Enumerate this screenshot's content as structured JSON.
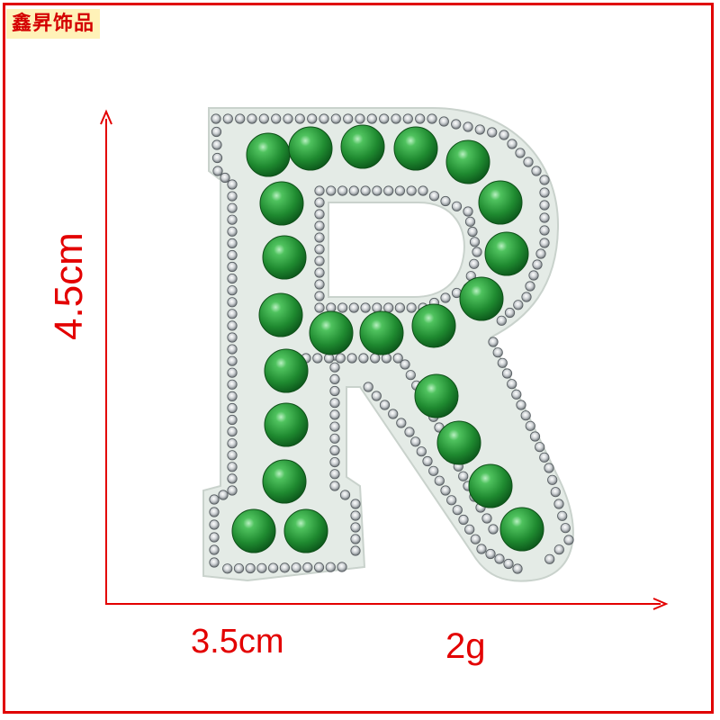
{
  "brand": {
    "label": "鑫昇饰品"
  },
  "product": {
    "letter": "R",
    "pearl_color": "#2a8f35",
    "backing_color": "#e4ebe6"
  },
  "dimensions": {
    "height_label": "4.5cm",
    "width_label": "3.5cm",
    "weight_label": "2g"
  },
  "colors": {
    "accent": "#e30000",
    "frame": "#e00000"
  }
}
